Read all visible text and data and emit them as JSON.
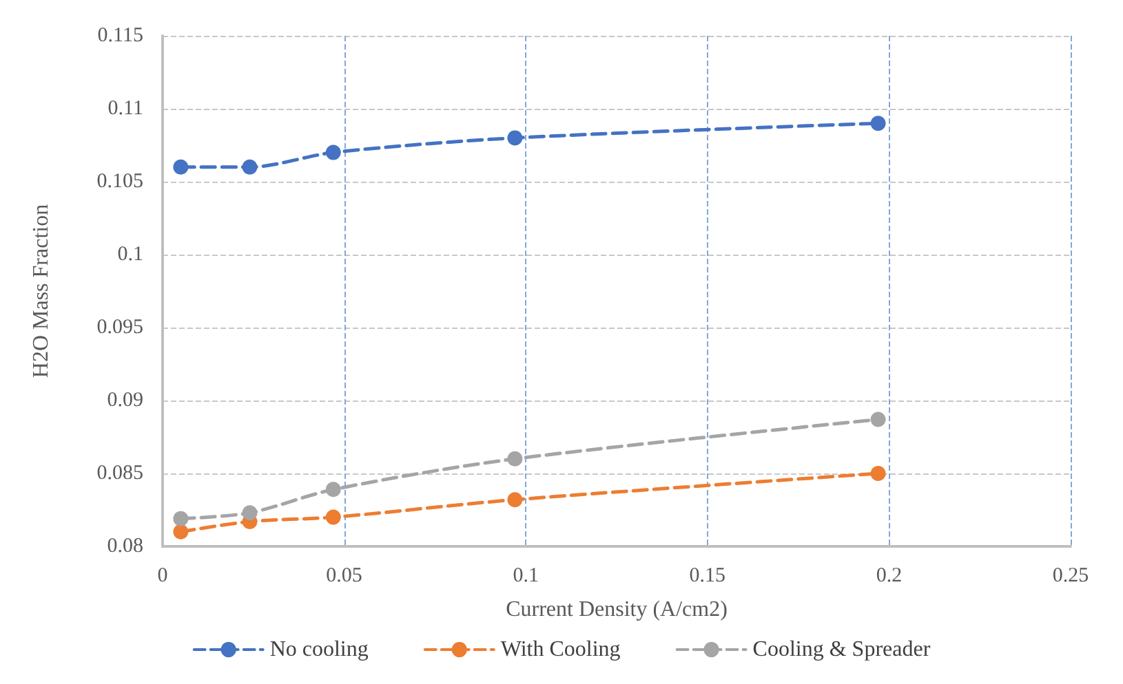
{
  "chart_data": {
    "type": "line",
    "xlabel": "Current Density (A/cm2)",
    "ylabel": "H2O Mass Fraction",
    "x": [
      0.005,
      0.024,
      0.047,
      0.097,
      0.197
    ],
    "series": [
      {
        "name": "No cooling",
        "color": "#4472c4",
        "values": [
          0.106,
          0.106,
          0.107,
          0.108,
          0.109
        ]
      },
      {
        "name": "With Cooling",
        "color": "#ed7d31",
        "values": [
          0.081,
          0.0817,
          0.082,
          0.0832,
          0.085
        ]
      },
      {
        "name": "Cooling & Spreader",
        "color": "#a5a5a5",
        "values": [
          0.0819,
          0.0823,
          0.0839,
          0.086,
          0.0887
        ]
      }
    ],
    "xlim": [
      0,
      0.25
    ],
    "xticks": [
      0,
      0.05,
      0.1,
      0.15,
      0.2,
      0.25
    ],
    "ylim": [
      0.08,
      0.115
    ],
    "yticks": [
      0.08,
      0.085,
      0.09,
      0.095,
      0.1,
      0.105,
      0.11,
      0.115
    ],
    "grid": true,
    "legend": "bottom",
    "marker": "circle",
    "line_style": "dashed"
  }
}
